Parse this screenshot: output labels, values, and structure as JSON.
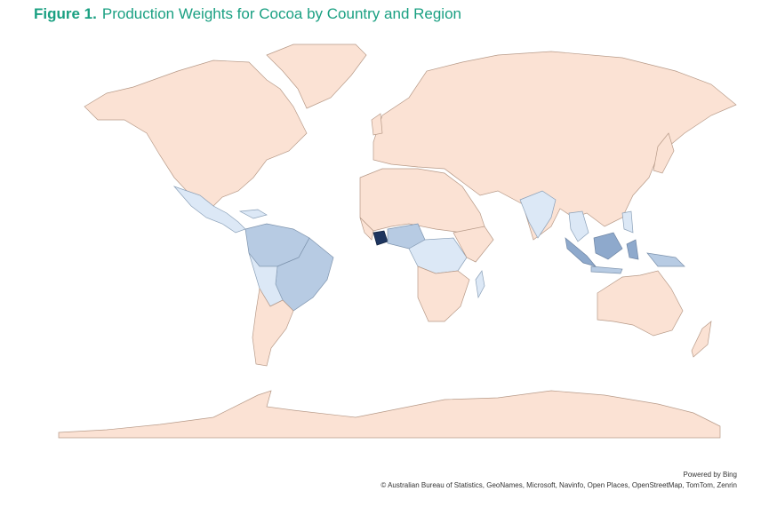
{
  "figure": {
    "label": "Figure 1.",
    "title": "Production Weights for Cocoa by Country and Region"
  },
  "attribution": {
    "powered_by": "Powered by Bing",
    "copyright": "© Australian Bureau of Statistics, GeoNames, Microsoft, Navinfo, Open Places, OpenStreetMap, TomTom, Zenrin"
  }
}
